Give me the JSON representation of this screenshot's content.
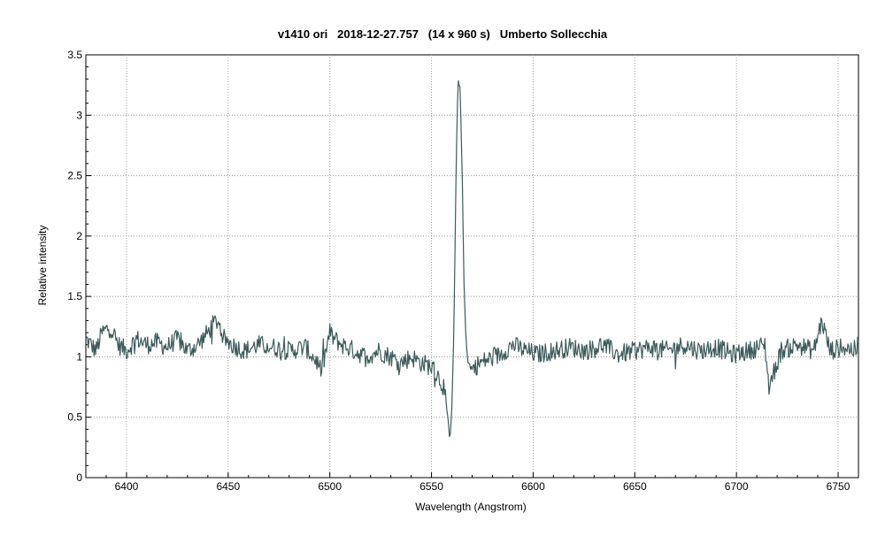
{
  "chart_data": {
    "type": "line",
    "title": "v1410 ori   2018-12-27.757   (14 x 960 s)   Umberto Sollecchia",
    "xlabel": "Wavelength (Angstrom)",
    "ylabel": "Relative intensity",
    "xlim": [
      6380,
      6760
    ],
    "ylim": [
      0,
      3.5
    ],
    "xticks": [
      6400,
      6450,
      6500,
      6550,
      6600,
      6650,
      6700,
      6750
    ],
    "yticks": [
      0,
      0.5,
      1,
      1.5,
      2,
      2.5,
      3,
      3.5
    ],
    "grid": true,
    "line_color": "#3d5a5a",
    "series": [
      {
        "x": [
          6380,
          6385,
          6388,
          6392,
          6396,
          6400,
          6405,
          6410,
          6415,
          6420,
          6425,
          6430,
          6435,
          6440,
          6443,
          6445,
          6448,
          6452,
          6458,
          6465,
          6472,
          6480,
          6488,
          6494,
          6496,
          6500,
          6502,
          6506,
          6512,
          6518,
          6524,
          6530,
          6535,
          6540,
          6545,
          6550,
          6553,
          6556,
          6558,
          6559,
          6560,
          6561,
          6562,
          6563,
          6564,
          6565,
          6566,
          6567,
          6568,
          6570,
          6574,
          6578,
          6582,
          6586,
          6590,
          6596,
          6602,
          6610,
          6618,
          6626,
          6634,
          6642,
          6650,
          6658,
          6666,
          6674,
          6682,
          6690,
          6698,
          6706,
          6714,
          6716,
          6722,
          6730,
          6738,
          6742,
          6746,
          6752,
          6760
        ],
        "y": [
          1.15,
          1.05,
          1.2,
          1.25,
          1.1,
          1.05,
          1.15,
          1.1,
          1.12,
          1.08,
          1.15,
          1.05,
          1.1,
          1.2,
          1.28,
          1.3,
          1.15,
          1.1,
          1.05,
          1.1,
          1.08,
          1.05,
          1.08,
          0.95,
          0.88,
          1.2,
          1.15,
          1.1,
          1.05,
          1.0,
          1.05,
          1.0,
          0.95,
          1.0,
          0.95,
          0.92,
          0.85,
          0.75,
          0.5,
          0.3,
          0.55,
          1.2,
          2.4,
          3.3,
          3.25,
          2.6,
          1.6,
          1.15,
          0.95,
          0.9,
          0.95,
          0.98,
          1.0,
          1.05,
          1.1,
          1.05,
          1.02,
          1.05,
          1.08,
          1.05,
          1.1,
          1.02,
          1.05,
          1.08,
          1.05,
          1.1,
          1.05,
          1.08,
          1.02,
          1.05,
          1.1,
          0.75,
          1.05,
          1.1,
          1.05,
          1.3,
          1.05,
          1.08,
          1.05
        ]
      }
    ]
  }
}
